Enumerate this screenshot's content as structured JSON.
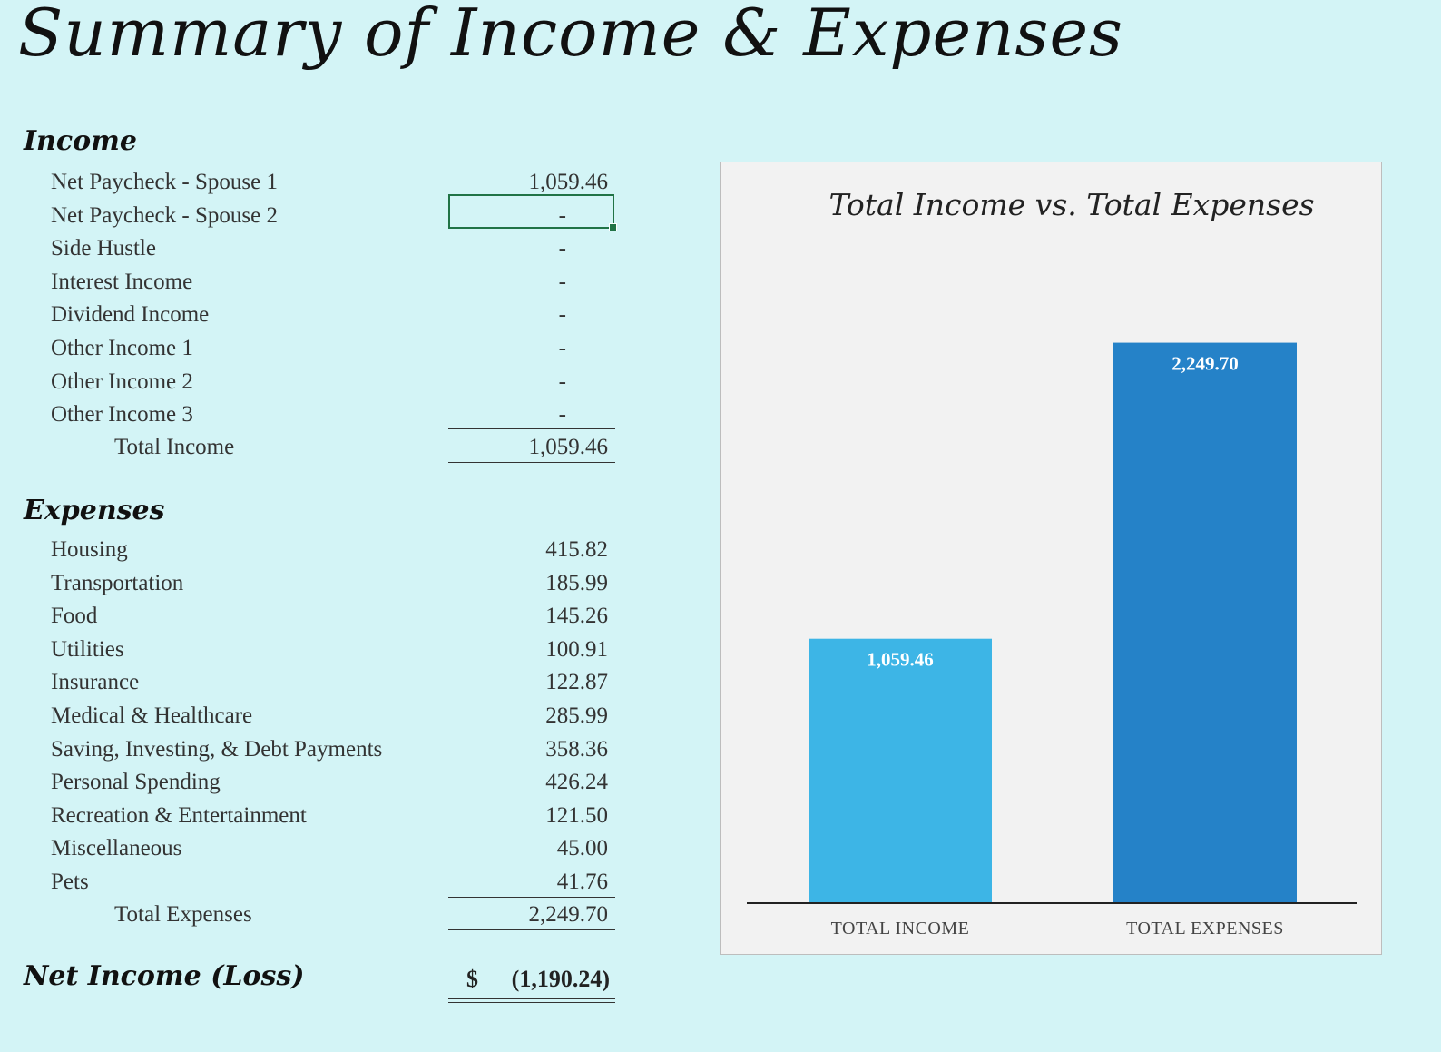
{
  "title": "Summary of Income & Expenses",
  "income": {
    "heading": "Income",
    "rows": [
      {
        "label": "Net Paycheck - Spouse 1",
        "value": "1,059.46"
      },
      {
        "label": "Net Paycheck - Spouse 2",
        "value": "-"
      },
      {
        "label": "Side Hustle",
        "value": "-"
      },
      {
        "label": "Interest Income",
        "value": "-"
      },
      {
        "label": "Dividend Income",
        "value": "-"
      },
      {
        "label": "Other Income 1",
        "value": "-"
      },
      {
        "label": "Other Income 2",
        "value": "-"
      },
      {
        "label": "Other Income 3",
        "value": "-"
      }
    ],
    "total_label": "Total Income",
    "total_value": "1,059.46"
  },
  "expenses": {
    "heading": "Expenses",
    "rows": [
      {
        "label": "Housing",
        "value": "415.82"
      },
      {
        "label": "Transportation",
        "value": "185.99"
      },
      {
        "label": "Food",
        "value": "145.26"
      },
      {
        "label": "Utilities",
        "value": "100.91"
      },
      {
        "label": "Insurance",
        "value": "122.87"
      },
      {
        "label": "Medical & Healthcare",
        "value": "285.99"
      },
      {
        "label": "Saving, Investing, & Debt Payments",
        "value": "358.36"
      },
      {
        "label": "Personal Spending",
        "value": "426.24"
      },
      {
        "label": "Recreation & Entertainment",
        "value": "121.50"
      },
      {
        "label": "Miscellaneous",
        "value": "45.00"
      },
      {
        "label": "Pets",
        "value": "41.76"
      }
    ],
    "total_label": "Total Expenses",
    "total_value": "2,249.70"
  },
  "net": {
    "label": "Net Income (Loss)",
    "currency": "$",
    "value": "(1,190.24)"
  },
  "colors": {
    "background": "#d3f4f6",
    "chart_background": "#f2f2f2",
    "income_bar": "#3db5e6",
    "expenses_bar": "#2582c8",
    "cell_selection": "#217346"
  },
  "chart_data": {
    "type": "bar",
    "title": "Total Income vs. Total Expenses",
    "categories": [
      "TOTAL INCOME",
      "TOTAL EXPENSES"
    ],
    "values": [
      1059.46,
      2249.7
    ],
    "data_labels": [
      "1,059.46",
      "2,249.70"
    ],
    "ylim": [
      0,
      2500
    ],
    "grid": false,
    "legend": "none",
    "xlabel": "",
    "ylabel": ""
  }
}
